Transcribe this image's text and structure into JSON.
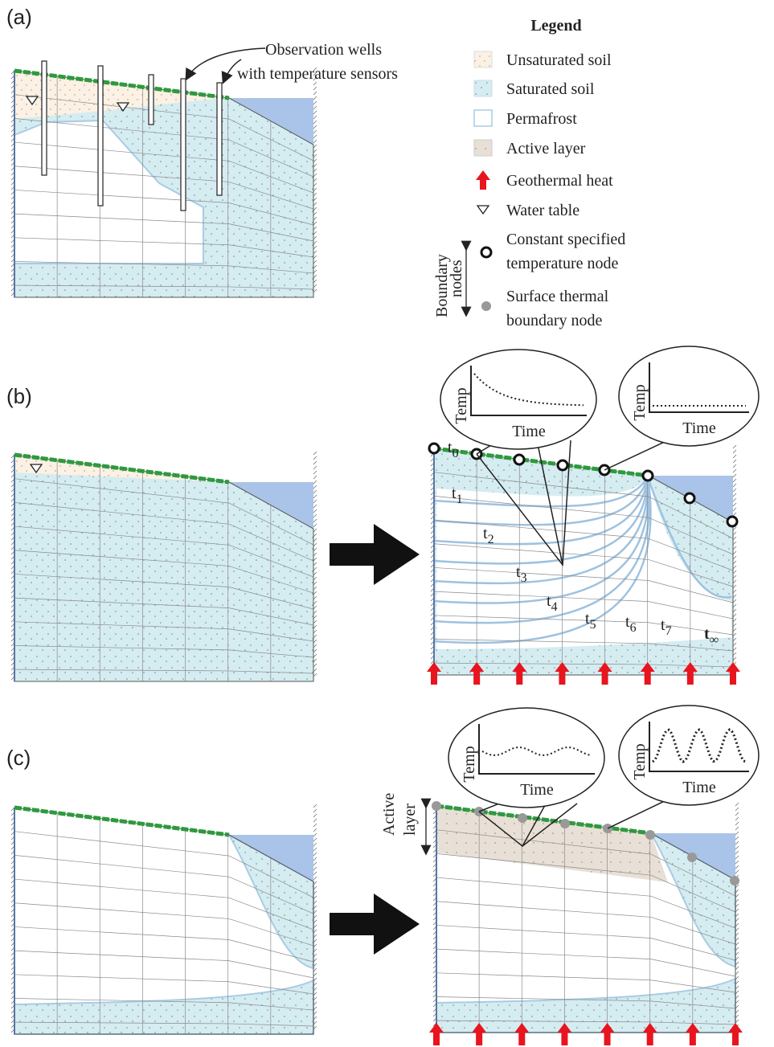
{
  "panels": [
    {
      "label": "(a)"
    },
    {
      "label": "(b)"
    },
    {
      "label": "(c)"
    }
  ],
  "annotation": {
    "lines": [
      "Observation wells",
      "with temperature sensors"
    ]
  },
  "legend": {
    "title": "Legend",
    "items": [
      {
        "lines": [
          "Unsaturated soil"
        ]
      },
      {
        "lines": [
          "Saturated soil"
        ]
      },
      {
        "lines": [
          "Permafrost"
        ]
      },
      {
        "lines": [
          "Active layer"
        ]
      },
      {
        "lines": [
          "Geothermal heat"
        ]
      },
      {
        "lines": [
          "Water table"
        ]
      },
      {
        "lines": [
          "Constant specified",
          "temperature node"
        ]
      },
      {
        "lines": [
          "Surface thermal",
          "boundary node"
        ]
      }
    ],
    "boundary_nodes": {
      "lines": [
        "Boundary",
        "nodes"
      ]
    }
  },
  "insets": [
    {
      "y_label": "Temp",
      "x_label": "Time"
    },
    {
      "y_label": "Temp",
      "x_label": "Time"
    },
    {
      "y_label": "Temp",
      "x_label": "Time"
    },
    {
      "y_label": "Temp",
      "x_label": "Time"
    }
  ],
  "time_labels": [
    {
      "base": "t",
      "sub": "0"
    },
    {
      "base": "t",
      "sub": "1"
    },
    {
      "base": "t",
      "sub": "2"
    },
    {
      "base": "t",
      "sub": "3"
    },
    {
      "base": "t",
      "sub": "4"
    },
    {
      "base": "t",
      "sub": "5"
    },
    {
      "base": "t",
      "sub": "6"
    },
    {
      "base": "t",
      "sub": "7"
    },
    {
      "base": "t",
      "sub": "∞"
    }
  ],
  "active_layer": {
    "lines": [
      "Active",
      "layer"
    ]
  }
}
